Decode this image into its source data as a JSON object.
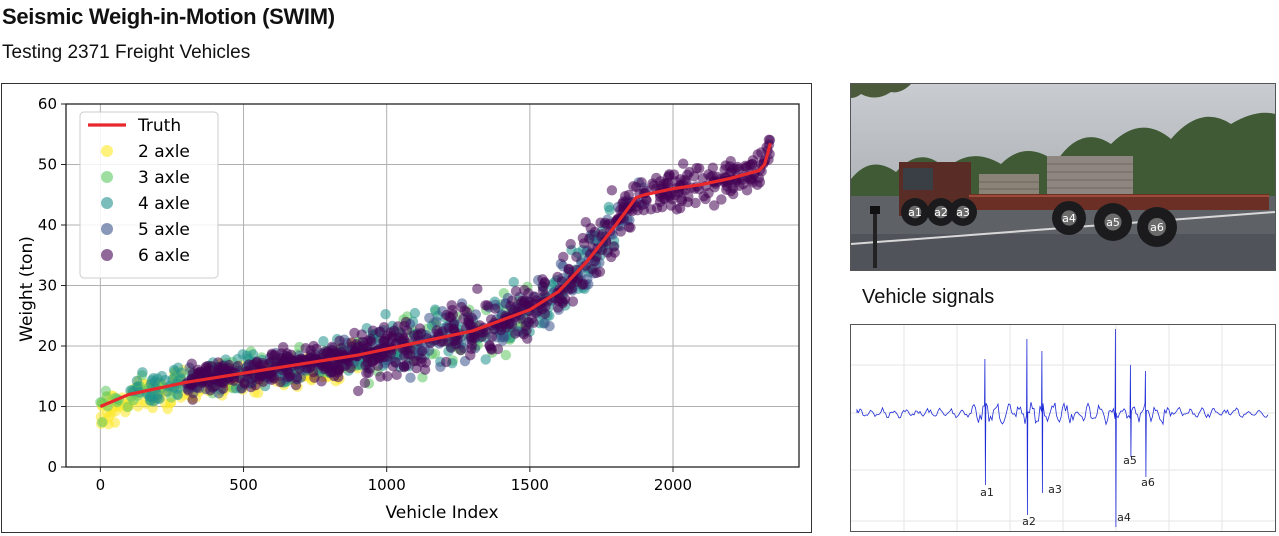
{
  "header": {
    "title": "Seismic Weigh-in-Motion (SWIM)",
    "subtitle": "Testing 2371 Freight Vehicles"
  },
  "chart_data": {
    "type": "scatter",
    "title": "",
    "xlabel": "Vehicle Index",
    "ylabel": "Weight (ton)",
    "xlim": [
      -120,
      2440
    ],
    "ylim": [
      0,
      60
    ],
    "xticks": [
      0,
      500,
      1000,
      1500,
      2000
    ],
    "yticks": [
      0,
      10,
      20,
      30,
      40,
      50,
      60
    ],
    "grid": true,
    "legend_position": "top-left",
    "series": [
      {
        "name": "Truth",
        "kind": "line",
        "color": "#e8282c",
        "x": [
          0,
          100,
          300,
          500,
          700,
          900,
          1100,
          1300,
          1500,
          1600,
          1700,
          1800,
          1870,
          1900,
          2000,
          2100,
          2200,
          2300,
          2320,
          2340
        ],
        "y": [
          10,
          12,
          14,
          15.5,
          17,
          18.5,
          20.5,
          22.5,
          26,
          29,
          34,
          40,
          44.5,
          45,
          46,
          46.7,
          47.7,
          49,
          50,
          53.5
        ]
      },
      {
        "name": "2 axle",
        "kind": "scatter",
        "color": "#fde725",
        "x_range": [
          0,
          900
        ],
        "density": 260
      },
      {
        "name": "3 axle",
        "kind": "scatter",
        "color": "#5ec962",
        "x_range": [
          0,
          1500
        ],
        "density": 200
      },
      {
        "name": "4 axle",
        "kind": "scatter",
        "color": "#21918c",
        "x_range": [
          100,
          1800
        ],
        "density": 320
      },
      {
        "name": "5 axle",
        "kind": "scatter",
        "color": "#3b528b",
        "x_range": [
          300,
          1900
        ],
        "density": 200
      },
      {
        "name": "6 axle",
        "kind": "scatter",
        "color": "#440154",
        "x_range": [
          300,
          2340
        ],
        "density": 700
      }
    ]
  },
  "photo": {
    "axle_labels": [
      "a1",
      "a2",
      "a3",
      "a4",
      "a5",
      "a6"
    ]
  },
  "signals": {
    "title": "Vehicle signals",
    "peak_labels": [
      "a1",
      "a2",
      "a3",
      "a4",
      "a5",
      "a6"
    ],
    "line_color": "#1f2bd6"
  }
}
